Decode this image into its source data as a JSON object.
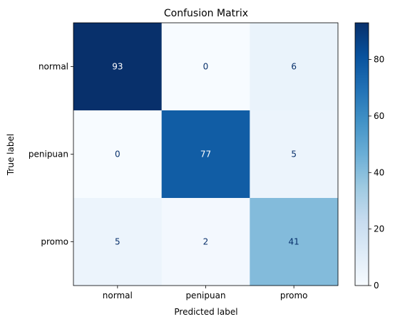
{
  "chart_data": {
    "type": "heatmap",
    "title": "Confusion Matrix",
    "xlabel": "Predicted label",
    "ylabel": "True label",
    "x_categories": [
      "normal",
      "penipuan",
      "promo"
    ],
    "y_categories": [
      "normal",
      "penipuan",
      "promo"
    ],
    "values": [
      [
        93,
        0,
        6
      ],
      [
        0,
        77,
        5
      ],
      [
        5,
        2,
        41
      ]
    ],
    "colormap": "Blues",
    "vmin": 0,
    "vmax": 93,
    "colorbar_ticks": [
      0,
      20,
      40,
      60,
      80
    ],
    "grid": false
  }
}
